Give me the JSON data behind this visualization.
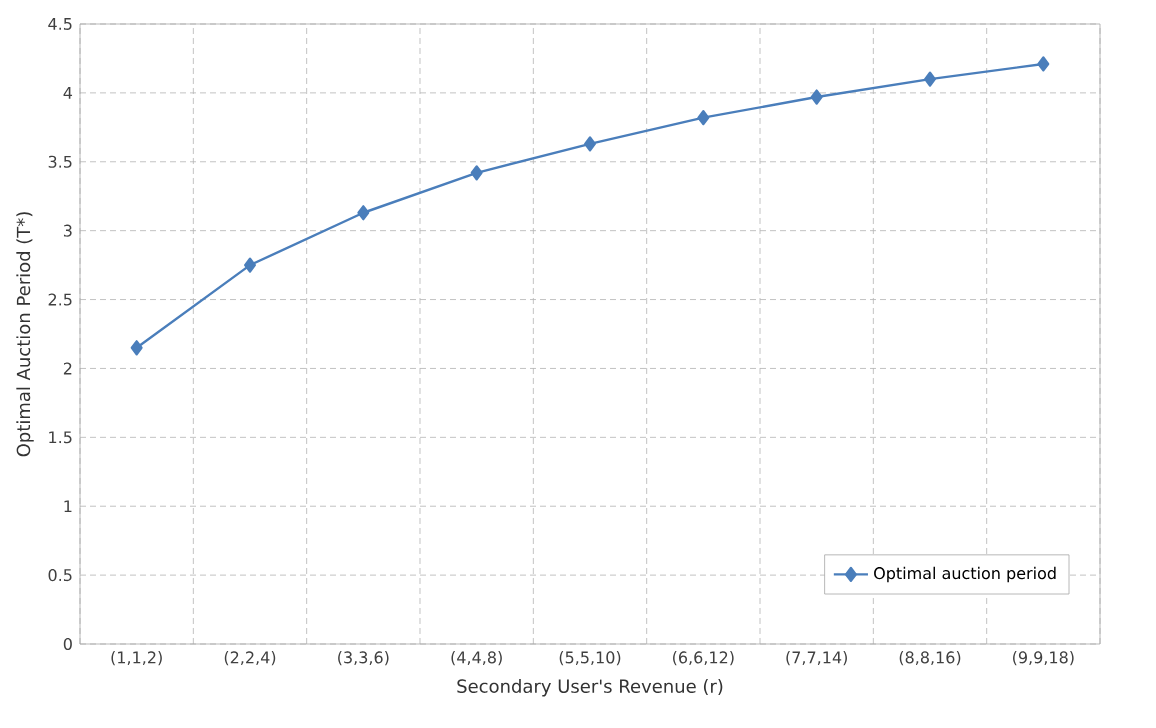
{
  "chart_data": {
    "type": "line",
    "xlabel": "Secondary User's Revenue (r)",
    "ylabel": "Optimal Auction Period (T*)",
    "categories": [
      "(1,1,2)",
      "(2,2,4)",
      "(3,3,6)",
      "(4,4,8)",
      "(5,5,10)",
      "(6,6,12)",
      "(7,7,14)",
      "(8,8,16)",
      "(9,9,18)"
    ],
    "series": [
      {
        "name": "Optimal auction period",
        "color": "#4a7ebb",
        "values": [
          2.15,
          2.75,
          3.13,
          3.42,
          3.63,
          3.82,
          3.97,
          4.1,
          4.21
        ]
      }
    ],
    "ylim": [
      0,
      4.5
    ],
    "yticks": [
      0,
      0.5,
      1,
      1.5,
      2,
      2.5,
      3,
      3.5,
      4,
      4.5
    ],
    "grid": true,
    "legend": "bottom right",
    "marker": "diamond",
    "line_style": "solid"
  }
}
